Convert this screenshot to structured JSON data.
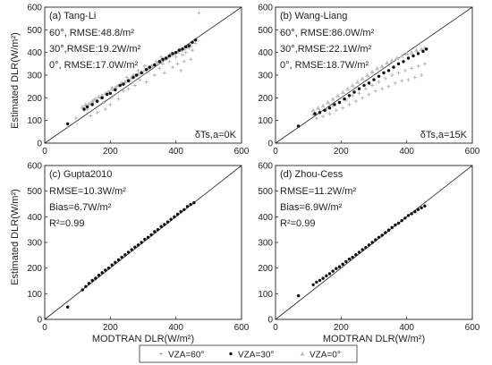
{
  "figure": {
    "ylabel": "Estimated DLR(W/m²)",
    "xlabel": "MODTRAN DLR(W/m²)",
    "legend": [
      {
        "text": "VZA=60°",
        "marker": "plus",
        "color": "#b0b0b0"
      },
      {
        "text": "VZA=30°",
        "marker": "dot",
        "color": "#111111"
      },
      {
        "text": "VZA=0°",
        "marker": "triangle",
        "color": "#c0c0c0"
      }
    ],
    "tick_values": [
      0,
      200,
      400,
      600
    ],
    "y_tick_values": [
      0,
      100,
      200,
      300,
      400,
      500,
      600
    ]
  },
  "chart_data": [
    {
      "type": "scatter",
      "title": "(a) Tang-Li",
      "annotations": [
        "60°, RMSE:48.8/m²",
        "30°,RMSE:19.2W/m²",
        "0°, RMSE:17.0W/m²"
      ],
      "corner_note": "δTs,a=0K",
      "xlim": [
        0,
        600
      ],
      "ylim": [
        0,
        600
      ],
      "one_to_one_line": true,
      "series": [
        {
          "name": "VZA=60°",
          "x": [
            70,
            95,
            120,
            125,
            130,
            140,
            145,
            150,
            160,
            170,
            180,
            185,
            190,
            200,
            205,
            210,
            220,
            225,
            235,
            240,
            250,
            255,
            260,
            270,
            275,
            285,
            290,
            300,
            305,
            310,
            320,
            330,
            335,
            340,
            350,
            355,
            360,
            365,
            370,
            380,
            385,
            390,
            400,
            405,
            410,
            415,
            420,
            425,
            430,
            440,
            445,
            450,
            460,
            470
          ],
          "y": [
            70,
            110,
            145,
            165,
            150,
            120,
            175,
            190,
            135,
            200,
            180,
            150,
            220,
            170,
            245,
            210,
            250,
            195,
            265,
            230,
            290,
            240,
            275,
            300,
            255,
            320,
            280,
            305,
            340,
            270,
            330,
            345,
            300,
            360,
            330,
            380,
            350,
            310,
            370,
            360,
            395,
            335,
            380,
            350,
            410,
            320,
            390,
            360,
            400,
            420,
            370,
            410,
            440,
            575
          ]
        },
        {
          "name": "VZA=30°",
          "x": [
            70,
            120,
            130,
            145,
            160,
            175,
            190,
            200,
            215,
            230,
            240,
            255,
            270,
            280,
            295,
            310,
            320,
            335,
            350,
            360,
            370,
            380,
            390,
            400,
            410,
            420,
            430,
            440,
            450,
            460
          ],
          "y": [
            85,
            150,
            160,
            170,
            185,
            200,
            215,
            220,
            235,
            255,
            260,
            275,
            290,
            300,
            310,
            325,
            335,
            345,
            360,
            370,
            375,
            385,
            395,
            400,
            410,
            415,
            425,
            430,
            445,
            455
          ]
        },
        {
          "name": "VZA=0°",
          "x": [
            115,
            125,
            135,
            145,
            155,
            165,
            175,
            185,
            195,
            205,
            215,
            225,
            235,
            245,
            255,
            265,
            275,
            285,
            295,
            305,
            315,
            325,
            335,
            345,
            355,
            365,
            375,
            385,
            395,
            405,
            415,
            425,
            435,
            445
          ],
          "y": [
            160,
            170,
            175,
            185,
            195,
            205,
            210,
            220,
            228,
            238,
            245,
            255,
            262,
            272,
            280,
            290,
            298,
            305,
            315,
            322,
            330,
            340,
            348,
            355,
            365,
            372,
            380,
            388,
            395,
            403,
            410,
            418,
            425,
            432
          ]
        }
      ]
    },
    {
      "type": "scatter",
      "title": "(b) Wang-Liang",
      "annotations": [
        "60°, RMSE:86.0W/m²",
        "30°,RMSE:22.1W/m²",
        "0°, RMSE:18.7W/m²"
      ],
      "corner_note": "δTs,a=15K",
      "xlim": [
        0,
        600
      ],
      "ylim": [
        0,
        600
      ],
      "one_to_one_line": true,
      "series": [
        {
          "name": "VZA=60°",
          "x": [
            70,
            115,
            125,
            135,
            145,
            155,
            165,
            175,
            185,
            195,
            205,
            215,
            225,
            235,
            245,
            255,
            265,
            275,
            285,
            295,
            305,
            315,
            325,
            335,
            345,
            355,
            365,
            375,
            385,
            395,
            405,
            415,
            425,
            435,
            445,
            455
          ],
          "y": [
            75,
            125,
            110,
            140,
            118,
            150,
            130,
            165,
            145,
            175,
            155,
            190,
            170,
            210,
            185,
            220,
            200,
            240,
            215,
            255,
            230,
            270,
            240,
            285,
            250,
            300,
            265,
            310,
            275,
            320,
            280,
            330,
            290,
            340,
            300,
            350
          ]
        },
        {
          "name": "VZA=30°",
          "x": [
            70,
            120,
            135,
            150,
            165,
            180,
            195,
            210,
            225,
            240,
            255,
            270,
            285,
            300,
            315,
            330,
            345,
            360,
            375,
            390,
            405,
            420,
            435,
            450,
            460
          ],
          "y": [
            75,
            130,
            135,
            145,
            155,
            170,
            180,
            195,
            210,
            225,
            240,
            255,
            265,
            280,
            295,
            310,
            320,
            335,
            350,
            360,
            375,
            385,
            395,
            405,
            415
          ]
        },
        {
          "name": "VZA=0°",
          "x": [
            115,
            130,
            145,
            160,
            175,
            190,
            205,
            220,
            235,
            250,
            265,
            280,
            295,
            310,
            325,
            340,
            355,
            370,
            385,
            400,
            415,
            430,
            445,
            455
          ],
          "y": [
            145,
            155,
            165,
            180,
            195,
            210,
            225,
            240,
            255,
            270,
            285,
            300,
            315,
            330,
            340,
            355,
            365,
            375,
            385,
            395,
            400,
            410,
            415,
            420
          ]
        }
      ]
    },
    {
      "type": "scatter",
      "title": "(c) Gupta2010",
      "annotations": [
        "RMSE=10.3W/m²",
        "Bias=6.7W/m²",
        "R²=0.99"
      ],
      "xlim": [
        0,
        600
      ],
      "ylim": [
        0,
        600
      ],
      "one_to_one_line": true,
      "series": [
        {
          "name": "VZA=30°",
          "x": [
            70,
            115,
            125,
            135,
            145,
            155,
            165,
            175,
            185,
            195,
            205,
            215,
            225,
            235,
            245,
            255,
            265,
            275,
            285,
            295,
            305,
            315,
            325,
            335,
            345,
            355,
            365,
            375,
            385,
            395,
            405,
            415,
            425,
            435,
            445,
            455
          ],
          "y": [
            48,
            115,
            128,
            140,
            152,
            160,
            172,
            182,
            192,
            200,
            212,
            222,
            232,
            242,
            252,
            262,
            272,
            282,
            290,
            300,
            312,
            320,
            330,
            342,
            350,
            362,
            370,
            380,
            390,
            400,
            410,
            420,
            428,
            440,
            448,
            455
          ]
        }
      ]
    },
    {
      "type": "scatter",
      "title": "(d) Zhou-Cess",
      "annotations": [
        "RMSE=11.2W/m²",
        "Bias=6.9W/m²",
        "R²=0.99"
      ],
      "xlim": [
        0,
        600
      ],
      "ylim": [
        0,
        600
      ],
      "one_to_one_line": true,
      "series": [
        {
          "name": "VZA=30°",
          "x": [
            70,
            115,
            125,
            135,
            145,
            155,
            165,
            175,
            185,
            195,
            205,
            215,
            225,
            235,
            245,
            255,
            265,
            275,
            285,
            295,
            305,
            315,
            325,
            335,
            345,
            355,
            365,
            375,
            385,
            395,
            405,
            415,
            425,
            435,
            445,
            455
          ],
          "y": [
            92,
            135,
            145,
            152,
            160,
            170,
            178,
            188,
            198,
            205,
            215,
            225,
            235,
            242,
            252,
            262,
            272,
            280,
            290,
            300,
            310,
            320,
            328,
            338,
            348,
            358,
            368,
            375,
            385,
            395,
            405,
            412,
            420,
            428,
            435,
            442
          ]
        }
      ]
    }
  ]
}
